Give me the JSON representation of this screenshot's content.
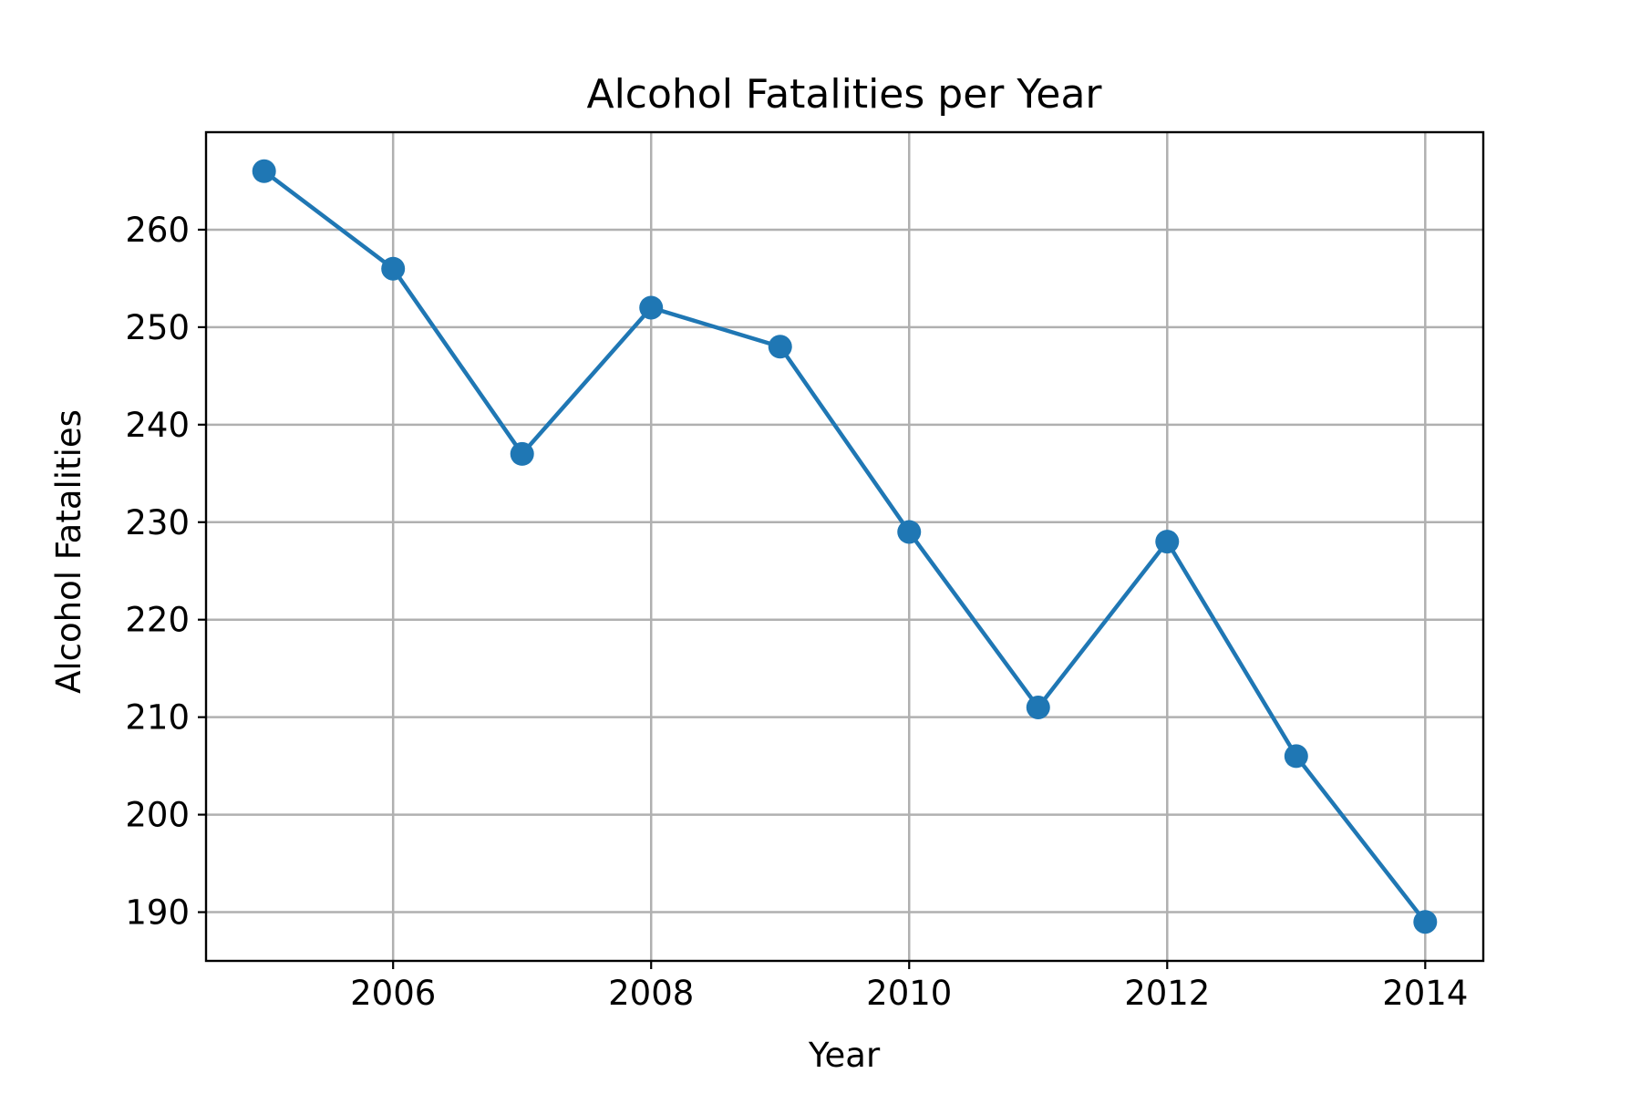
{
  "colors": {
    "series": "#1f77b4",
    "grid": "#b0b0b0",
    "frame": "#000000",
    "text": "#000000",
    "background": "#ffffff"
  },
  "chart_data": {
    "type": "line",
    "title": "Alcohol Fatalities per Year",
    "xlabel": "Year",
    "ylabel": "Alcohol Fatalities",
    "xlim": [
      2004.55,
      2014.45
    ],
    "ylim": [
      185,
      270
    ],
    "x_ticks": [
      2006,
      2008,
      2010,
      2012,
      2014
    ],
    "y_ticks": [
      190,
      200,
      210,
      220,
      230,
      240,
      250,
      260
    ],
    "grid": true,
    "legend": "none",
    "marker": "circle",
    "series": [
      {
        "x": [
          2005,
          2006,
          2007,
          2008,
          2009,
          2010,
          2011,
          2012,
          2013,
          2014
        ],
        "values": [
          266,
          256,
          237,
          252,
          248,
          229,
          211,
          228,
          206,
          189
        ]
      }
    ]
  }
}
